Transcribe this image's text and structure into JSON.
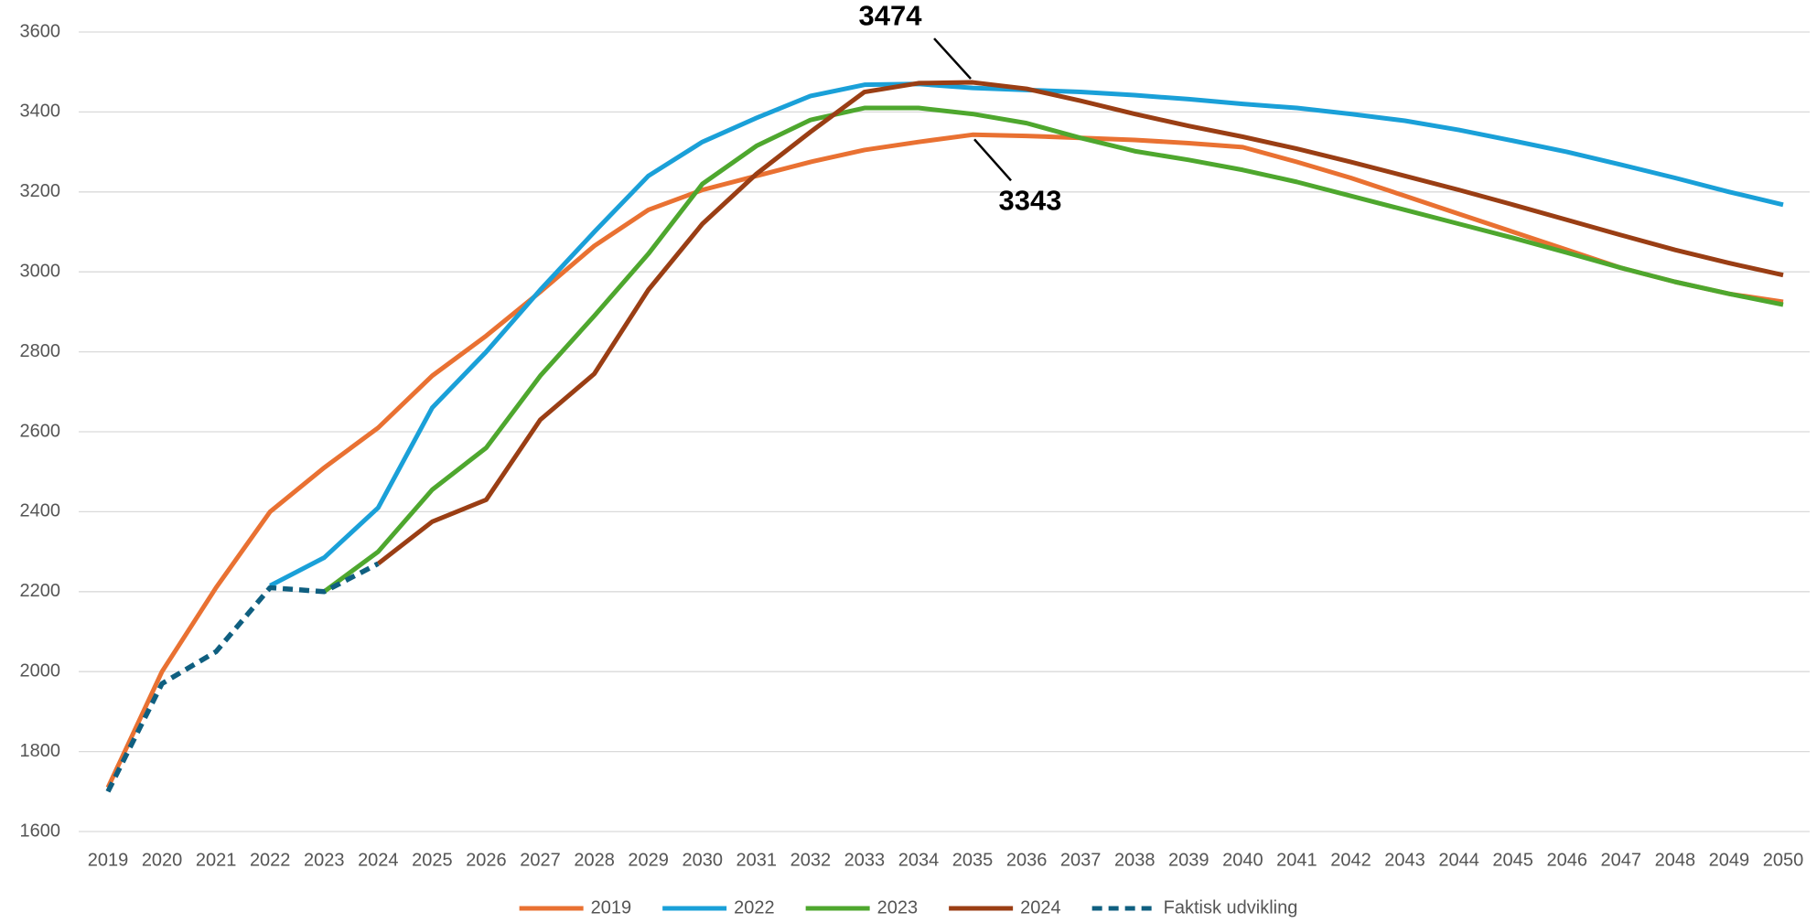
{
  "chart_data": {
    "type": "line",
    "categories": [
      "2019",
      "2020",
      "2021",
      "2022",
      "2023",
      "2024",
      "2025",
      "2026",
      "2027",
      "2028",
      "2029",
      "2030",
      "2031",
      "2032",
      "2033",
      "2034",
      "2035",
      "2036",
      "2037",
      "2038",
      "2039",
      "2040",
      "2041",
      "2042",
      "2043",
      "2044",
      "2045",
      "2046",
      "2047",
      "2048",
      "2049",
      "2050"
    ],
    "series": [
      {
        "name": "2019",
        "color": "#e97132",
        "values": [
          1710,
          2000,
          2210,
          2400,
          2510,
          2610,
          2740,
          2840,
          2950,
          3065,
          3155,
          3205,
          3240,
          3275,
          3305,
          3325,
          3343,
          3340,
          3335,
          3330,
          3322,
          3312,
          3275,
          3235,
          3190,
          3145,
          3100,
          3055,
          3010,
          2975,
          2945,
          2925
        ]
      },
      {
        "name": "2022",
        "color": "#1aa0d8",
        "values": [
          null,
          null,
          null,
          2215,
          2285,
          2410,
          2660,
          2800,
          2955,
          3100,
          3240,
          3325,
          3385,
          3440,
          3468,
          3470,
          3460,
          3455,
          3450,
          3442,
          3432,
          3420,
          3410,
          3395,
          3378,
          3355,
          3328,
          3300,
          3268,
          3235,
          3200,
          3168
        ]
      },
      {
        "name": "2023",
        "color": "#4ea72e",
        "values": [
          null,
          null,
          null,
          null,
          2200,
          2300,
          2455,
          2560,
          2740,
          2890,
          3045,
          3220,
          3315,
          3380,
          3410,
          3410,
          3395,
          3372,
          3335,
          3302,
          3280,
          3255,
          3225,
          3190,
          3155,
          3120,
          3085,
          3048,
          3010,
          2975,
          2945,
          2918
        ]
      },
      {
        "name": "2024",
        "color": "#9a3e14",
        "values": [
          null,
          null,
          null,
          null,
          null,
          2270,
          2375,
          2430,
          2630,
          2745,
          2955,
          3120,
          3245,
          3350,
          3450,
          3472,
          3474,
          3458,
          3428,
          3395,
          3365,
          3338,
          3308,
          3275,
          3240,
          3205,
          3168,
          3130,
          3092,
          3055,
          3022,
          2992
        ]
      },
      {
        "name": "Faktisk udvikling",
        "color": "#0f5f80",
        "dashed": true,
        "values": [
          1700,
          1970,
          2050,
          2210,
          2200,
          2270,
          null,
          null,
          null,
          null,
          null,
          null,
          null,
          null,
          null,
          null,
          null,
          null,
          null,
          null,
          null,
          null,
          null,
          null,
          null,
          null,
          null,
          null,
          null,
          null,
          null,
          null
        ]
      }
    ],
    "annotations": [
      3474,
      3343
    ],
    "ylim": [
      1600,
      3600
    ],
    "yticks": [
      1600,
      1800,
      2000,
      2200,
      2400,
      2600,
      2800,
      3000,
      3200,
      3400,
      3600
    ],
    "grid": true,
    "legend": "bottom"
  }
}
